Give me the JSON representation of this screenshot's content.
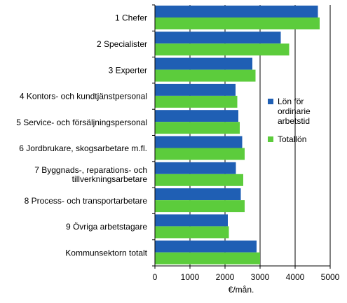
{
  "chart_data": {
    "type": "bar",
    "orientation": "horizontal",
    "categories": [
      [
        "1 Chefer"
      ],
      [
        "2 Specialister"
      ],
      [
        "3 Experter"
      ],
      [
        "4 Kontors- och kundtjänstpersonal"
      ],
      [
        "5 Service- och försäljningspersonal"
      ],
      [
        "6 Jordbrukare, skogsarbetare m.fl."
      ],
      [
        "7 Byggnads-, reparations- och",
        "tillverkningsarbetare"
      ],
      [
        "8 Process- och transportarbetare"
      ],
      [
        "9 Övriga arbetstagare"
      ],
      [
        "Kommunsektorn totalt"
      ]
    ],
    "series": [
      {
        "name": "Lön för ordinarie arbetstid",
        "legend_lines": [
          "Lön för",
          "ordinarie",
          "arbetstid"
        ],
        "color": "#1f5fb4",
        "values": [
          4650,
          3590,
          2780,
          2300,
          2380,
          2490,
          2310,
          2450,
          2080,
          2900
        ]
      },
      {
        "name": "Totallön",
        "legend_lines": [
          "Totallön"
        ],
        "color": "#5ccc3c",
        "values": [
          4700,
          3830,
          2870,
          2350,
          2420,
          2560,
          2520,
          2560,
          2110,
          3000
        ]
      }
    ],
    "xlabel": "€/mån.",
    "xlim": [
      0,
      5000
    ],
    "xticks": [
      0,
      1000,
      2000,
      3000,
      4000,
      5000
    ],
    "grid": "vertical",
    "legend_position": "right"
  }
}
